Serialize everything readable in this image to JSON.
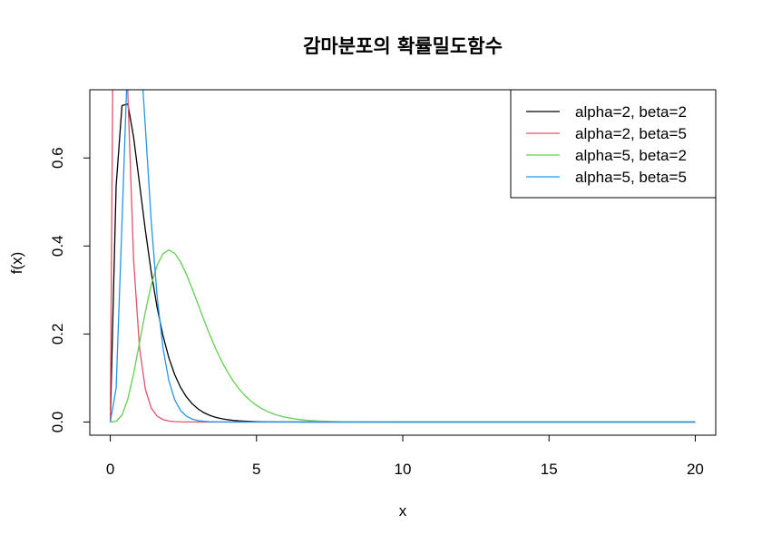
{
  "chart_data": {
    "type": "line",
    "title": "감마분포의 확률밀도함수",
    "xlabel": "x",
    "ylabel": "f(x)",
    "xlim": [
      -0.7,
      20.7
    ],
    "ylim": [
      -0.03,
      0.755
    ],
    "xticks": [
      0,
      5,
      10,
      15,
      20
    ],
    "xtick_labels": [
      "0",
      "5",
      "10",
      "15",
      "20"
    ],
    "yticks": [
      0.0,
      0.2,
      0.4,
      0.6
    ],
    "ytick_labels": [
      "0.0",
      "0.2",
      "0.4",
      "0.6"
    ],
    "x_range": [
      0,
      20
    ],
    "x_step": 0.2,
    "grid": false,
    "legend_position": "top-right",
    "series": [
      {
        "name": "alpha=2, beta=2",
        "alpha": 2,
        "beta": 2,
        "color": "#000000"
      },
      {
        "name": "alpha=2, beta=5",
        "alpha": 2,
        "beta": 5,
        "color": "#DF536B"
      },
      {
        "name": "alpha=5, beta=2",
        "alpha": 5,
        "beta": 2,
        "color": "#61D04F"
      },
      {
        "name": "alpha=5, beta=5",
        "alpha": 5,
        "beta": 5,
        "color": "#2297E6"
      }
    ]
  }
}
